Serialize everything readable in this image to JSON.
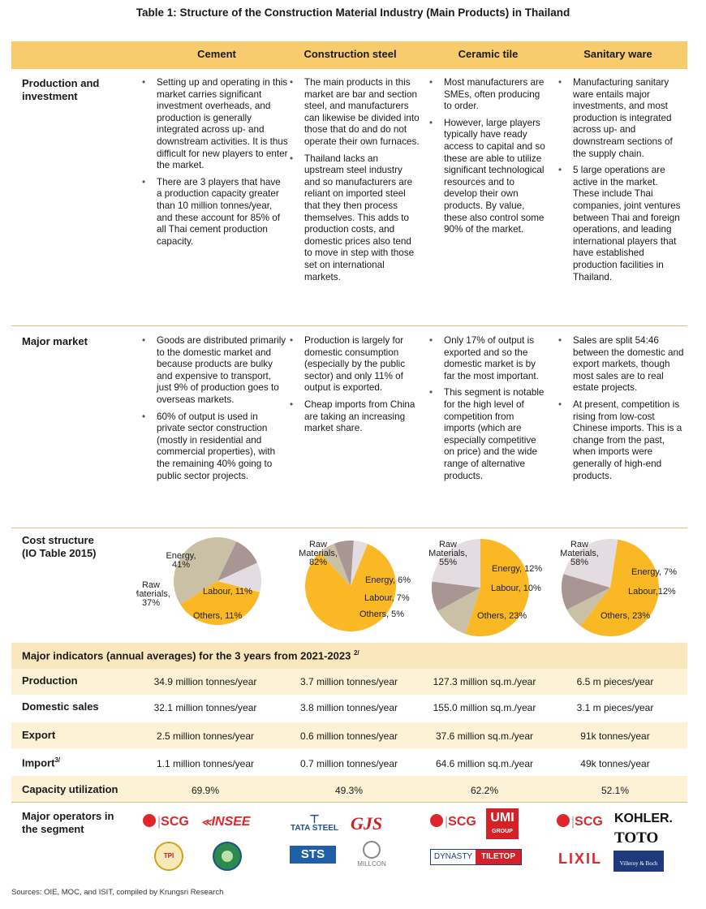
{
  "title": "Table 1: Structure of the Construction Material Industry (Main Products) in Thailand",
  "columns": [
    "Cement",
    "Construction steel",
    "Ceramic tile",
    "Sanitary ware"
  ],
  "rows": {
    "production": {
      "label": "Production and investment",
      "cement": [
        "Setting up and operating in this market carries significant investment overheads, and production is generally integrated across up- and downstream activities. It is thus difficult for new players to enter the market.",
        "There are 3 players that have a production capacity greater than 10 million tonnes/year, and these account for 85% of all Thai cement production capacity."
      ],
      "steel": [
        "The main products in this market are bar and section steel, and manufacturers can likewise be divided into those that do and do not operate their own furnaces.",
        "Thailand lacks an upstream steel industry and so manufacturers are reliant on imported steel that they then process themselves. This adds to production costs, and domestic prices also tend to move in step with those set on international markets."
      ],
      "ceramic": [
        "Most manufacturers are SMEs, often producing to order.",
        "However, large players typically have ready access to capital and so these are able to utilize significant technological resources and to develop their own products. By value, these also control some 90% of the market."
      ],
      "sanitary": [
        "Manufacturing sanitary ware entails major investments, and most production is integrated across up- and downstream sections of the supply chain.",
        "5 large operations are active in the market. These include Thai companies, joint ventures between Thai and foreign operations, and leading international players that have established production facilities in Thailand."
      ]
    },
    "market": {
      "label": "Major market",
      "cement": [
        "Goods are distributed primarily to the domestic market and because products are bulky and expensive to transport, just 9% of production goes to overseas markets.",
        "60% of output is used in private sector construction (mostly in residential and commercial properties), with the remaining 40% going to public sector projects."
      ],
      "steel": [
        "Production is largely for domestic consumption (especially by the public sector) and only 11% of output is exported.",
        "Cheap imports from China are taking an increasing market share."
      ],
      "ceramic": [
        "Only 17% of output is exported and so the domestic market is by far the most important.",
        "This segment is notable for the high level of competition from imports (which are especially competitive on price) and the wide range of alternative products."
      ],
      "sanitary": [
        "Sales are split 54:46 between the domestic and export markets, though most sales are to real estate projects.",
        "At present, competition is rising from low-cost Chinese imports. This is a change from the past, when imports were generally of high-end products."
      ]
    },
    "cost": {
      "label_line1": "Cost structure",
      "label_line2": "(IO Table 2015)"
    }
  },
  "chart_data": [
    {
      "type": "pie",
      "title": "Cement",
      "slices": [
        {
          "name": "Energy",
          "value": 41,
          "label": "Energy,\n41%",
          "color": "#c9c0a6"
        },
        {
          "name": "Labour",
          "value": 11,
          "label": "Labour, 11%",
          "color": "#a89594"
        },
        {
          "name": "Others",
          "value": 11,
          "label": "Others, 11%",
          "color": "#e3dce0"
        },
        {
          "name": "Raw Materials",
          "value": 37,
          "label": "Raw\nMaterials,\n37%",
          "color": "#f9b824"
        }
      ]
    },
    {
      "type": "pie",
      "title": "Construction steel",
      "slices": [
        {
          "name": "Raw Materials",
          "value": 82,
          "label": "Raw\nMaterials,\n82%",
          "color": "#f9b824"
        },
        {
          "name": "Energy",
          "value": 6,
          "label": "Energy, 6%",
          "color": "#c9c0a6"
        },
        {
          "name": "Labour",
          "value": 7,
          "label": "Labour, 7%",
          "color": "#a89594"
        },
        {
          "name": "Others",
          "value": 5,
          "label": "Others, 5%",
          "color": "#e3dce0"
        }
      ]
    },
    {
      "type": "pie",
      "title": "Ceramic tile",
      "slices": [
        {
          "name": "Raw Materials",
          "value": 55,
          "label": "Raw\nMaterials,\n55%",
          "color": "#f9b824"
        },
        {
          "name": "Energy",
          "value": 12,
          "label": "Energy, 12%",
          "color": "#c9c0a6"
        },
        {
          "name": "Labour",
          "value": 10,
          "label": "Labour, 10%",
          "color": "#a89594"
        },
        {
          "name": "Others",
          "value": 23,
          "label": "Others, 23%",
          "color": "#e3dce0"
        }
      ]
    },
    {
      "type": "pie",
      "title": "Sanitary ware",
      "slices": [
        {
          "name": "Raw Materials",
          "value": 58,
          "label": "Raw\nMaterials,\n58%",
          "color": "#f9b824"
        },
        {
          "name": "Energy",
          "value": 7,
          "label": "Energy, 7%",
          "color": "#c9c0a6"
        },
        {
          "name": "Labour",
          "value": 12,
          "label": "Labour,12%",
          "color": "#a89594"
        },
        {
          "name": "Others",
          "value": 23,
          "label": "Others, 23%",
          "color": "#e3dce0"
        }
      ]
    }
  ],
  "indicators": {
    "header": "Major indicators (annual averages) for the 3 years from 2021-2023",
    "header_sup": "2/",
    "rows": [
      {
        "label": "Production",
        "sup": "",
        "values": [
          "34.9 million tonnes/year",
          "3.7 million tonnes/year",
          "127.3 million sq.m./year",
          "6.5 m pieces/year"
        ]
      },
      {
        "label": "Domestic sales",
        "sup": "",
        "values": [
          "32.1 million tonnes/year",
          "3.8 million tonnes/year",
          "155.0 million sq.m./year",
          "3.1 m pieces/year"
        ]
      },
      {
        "label": "Export",
        "sup": "",
        "values": [
          "2.5 million tonnes/year",
          "0.6 million tonnes/year",
          "37.6 million sq.m./year",
          "91k tonnes/year"
        ]
      },
      {
        "label": "Import",
        "sup": "3/",
        "values": [
          "1.1 million tonnes/year",
          "0.7 million tonnes/year",
          "64.6 million sq.m./year",
          "49k tonnes/year"
        ]
      },
      {
        "label": "Capacity utilization",
        "sup": "",
        "values": [
          "69.9%",
          "49.3%",
          "62.2%",
          "52.1%"
        ]
      }
    ]
  },
  "operators": {
    "label_line1": "Major operators in",
    "label_line2": "the segment",
    "logos": {
      "scg": "SCG",
      "insee": "INSEE",
      "tata": "TATA STEEL",
      "gjs": "GJS",
      "sts": "STS",
      "millcon": "MILLCON",
      "umi": "GROUP",
      "dynasty": "DYNASTY",
      "tiletop": "TILETOP",
      "kohler": "KOHLER.",
      "toto": "TOTO",
      "lixil": "LIXIL",
      "vb": "Villeroy & Boch"
    }
  },
  "source": "Sources: OIE, MOC, and ISIT, compiled by Krungsri Research"
}
